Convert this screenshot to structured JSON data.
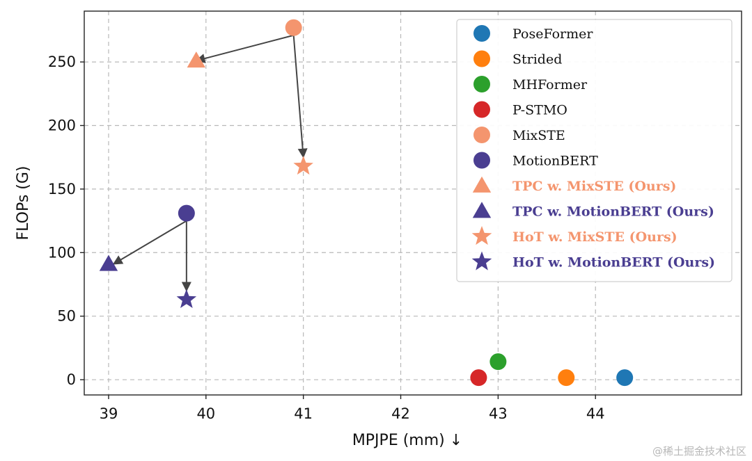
{
  "chart_data": {
    "type": "scatter",
    "xlabel": "MPJPE (mm) ↓",
    "ylabel": "FLOPs (G)",
    "xlim": [
      38.75,
      45.5
    ],
    "ylim": [
      -12,
      290
    ],
    "xticks": [
      39,
      40,
      41,
      42,
      43,
      44
    ],
    "yticks": [
      0,
      50,
      100,
      150,
      200,
      250
    ],
    "grid": true,
    "legend_position": "top-right",
    "series": [
      {
        "name": "PoseFormer",
        "marker": "circle",
        "color": "#1f77b4",
        "bold": false,
        "points": [
          {
            "x": 44.3,
            "y": 1.6
          }
        ]
      },
      {
        "name": "Strided",
        "marker": "circle",
        "color": "#ff7f0e",
        "bold": false,
        "points": [
          {
            "x": 43.7,
            "y": 1.6
          }
        ]
      },
      {
        "name": "MHFormer",
        "marker": "circle",
        "color": "#2ca02c",
        "bold": false,
        "points": [
          {
            "x": 43.0,
            "y": 14.2
          }
        ]
      },
      {
        "name": "P-STMO",
        "marker": "circle",
        "color": "#d62728",
        "bold": false,
        "points": [
          {
            "x": 42.8,
            "y": 1.6
          }
        ]
      },
      {
        "name": "MixSTE",
        "marker": "circle",
        "color": "#f4956e",
        "bold": false,
        "points": [
          {
            "x": 40.9,
            "y": 277
          }
        ]
      },
      {
        "name": "MotionBERT",
        "marker": "circle",
        "color": "#4a3e91",
        "bold": false,
        "points": [
          {
            "x": 39.8,
            "y": 131
          }
        ]
      },
      {
        "name": "TPC w. MixSTE (Ours)",
        "marker": "triangle",
        "color": "#f4956e",
        "bold": true,
        "points": [
          {
            "x": 39.9,
            "y": 251
          }
        ]
      },
      {
        "name": "TPC w. MotionBERT (Ours)",
        "marker": "triangle",
        "color": "#4a3e91",
        "bold": true,
        "points": [
          {
            "x": 39.0,
            "y": 91
          }
        ]
      },
      {
        "name": "HoT w. MixSTE (Ours)",
        "marker": "star",
        "color": "#f4956e",
        "bold": true,
        "points": [
          {
            "x": 41.0,
            "y": 168
          }
        ]
      },
      {
        "name": "HoT w. MotionBERT (Ours)",
        "marker": "star",
        "color": "#4a3e91",
        "bold": true,
        "points": [
          {
            "x": 39.8,
            "y": 63
          }
        ]
      }
    ],
    "annotations": [
      {
        "type": "arrow",
        "from": {
          "x": 40.9,
          "y": 271
        },
        "to": {
          "x": 39.9,
          "y": 251
        }
      },
      {
        "type": "arrow",
        "from": {
          "x": 40.9,
          "y": 271
        },
        "to": {
          "x": 41.0,
          "y": 175
        }
      },
      {
        "type": "arrow",
        "from": {
          "x": 39.8,
          "y": 125
        },
        "to": {
          "x": 39.05,
          "y": 91
        }
      },
      {
        "type": "arrow",
        "from": {
          "x": 39.8,
          "y": 125
        },
        "to": {
          "x": 39.8,
          "y": 70
        }
      }
    ]
  },
  "watermark": "@稀土掘金技术社区"
}
